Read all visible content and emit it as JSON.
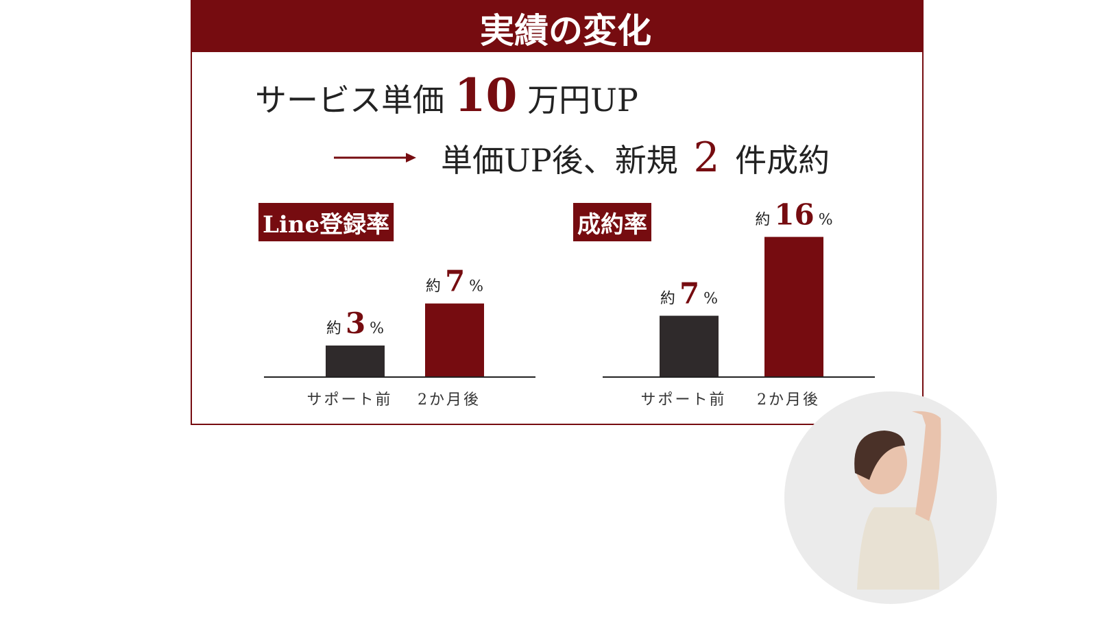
{
  "title": "実績の変化",
  "headline": {
    "prefix": "サービス単価",
    "number": 10,
    "suffix": "万円UP"
  },
  "result": {
    "prefix": "単価UP後、新規",
    "number": 2,
    "suffix": "件成約"
  },
  "chart_data": [
    {
      "type": "bar",
      "title": "Line登録率",
      "categories": [
        "サポート前",
        "2か月後"
      ],
      "values": [
        3,
        7
      ],
      "colors": [
        "#2f2a2b",
        "#760c10"
      ],
      "ylim": [
        0,
        15
      ],
      "value_prefix": "約",
      "value_unit": "%"
    },
    {
      "type": "bar",
      "title": "成約率",
      "categories": [
        "サポート前",
        "2か月後"
      ],
      "values": [
        7,
        16
      ],
      "colors": [
        "#2f2a2b",
        "#760c10"
      ],
      "ylim": [
        0,
        18
      ],
      "value_prefix": "約",
      "value_unit": "%"
    }
  ]
}
